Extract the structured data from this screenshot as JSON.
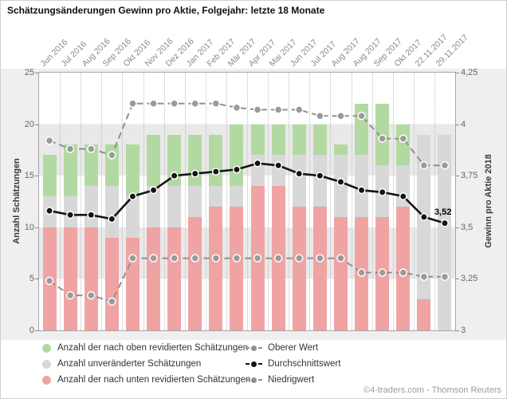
{
  "title": "Schätzungsänderungen Gewinn pro Aktie, Folgejahr: letzte 18 Monate",
  "chart_data": {
    "type": "bar",
    "subtype": "stacked-bars-with-lines",
    "categories": [
      "Jun 2016",
      "Jul 2016",
      "Aug 2016",
      "Sep 2016",
      "Okt 2016",
      "Nov 2016",
      "Dez 2016",
      "Jan 2017",
      "Feb 2017",
      "Mär 2017",
      "Apr 2017",
      "Mai 2017",
      "Jun 2017",
      "Jul 2017",
      "Aug 2017",
      "Aug 2017",
      "Sep 2017",
      "Okt 2017",
      "22.11.2017",
      "29.11.2017"
    ],
    "bar_series": [
      {
        "name": "Anzahl der nach unten revidierten Schätzungen",
        "role": "revised-down",
        "color": "#f0a3a3",
        "values": [
          10,
          10,
          10,
          9,
          9,
          10,
          10,
          11,
          12,
          12,
          14,
          14,
          12,
          12,
          11,
          11,
          11,
          12,
          3,
          0
        ]
      },
      {
        "name": "Anzahl unveränderter Schätzungen",
        "role": "unchanged",
        "color": "#d8d8d8",
        "values": [
          3,
          3,
          4,
          5,
          4,
          4,
          4,
          3,
          2,
          2,
          3,
          3,
          5,
          5,
          6,
          6,
          5,
          4,
          16,
          19
        ]
      },
      {
        "name": "Anzahl der nach oben revidierten Schätzungen",
        "role": "revised-up",
        "color": "#b3d9a3",
        "values": [
          4,
          5,
          4,
          4,
          5,
          5,
          5,
          5,
          5,
          6,
          3,
          3,
          3,
          3,
          1,
          5,
          6,
          4,
          0,
          0
        ]
      }
    ],
    "line_series": [
      {
        "name": "Oberer Wert",
        "color": "#909090",
        "style": "dashed",
        "values": [
          3.92,
          3.88,
          3.88,
          3.85,
          4.1,
          4.1,
          4.1,
          4.1,
          4.1,
          4.08,
          4.07,
          4.07,
          4.07,
          4.04,
          4.04,
          4.04,
          3.93,
          3.93,
          3.8,
          3.8
        ]
      },
      {
        "name": "Niedrigwert",
        "color": "#909090",
        "style": "dashed",
        "values": [
          3.24,
          3.17,
          3.17,
          3.14,
          3.35,
          3.35,
          3.35,
          3.35,
          3.35,
          3.35,
          3.35,
          3.35,
          3.35,
          3.35,
          3.35,
          3.28,
          3.28,
          3.28,
          3.26,
          3.26
        ]
      },
      {
        "name": "Durchschnittswert",
        "color": "#141414",
        "style": "solid",
        "values": [
          3.58,
          3.56,
          3.56,
          3.54,
          3.65,
          3.68,
          3.75,
          3.76,
          3.77,
          3.78,
          3.81,
          3.8,
          3.76,
          3.75,
          3.72,
          3.68,
          3.67,
          3.65,
          3.55,
          3.52
        ]
      }
    ],
    "left_axis": {
      "title": "Anzahl Schätzungen",
      "ticks": [
        25,
        20,
        15,
        10,
        5,
        0
      ],
      "range": [
        0,
        25
      ]
    },
    "right_axis": {
      "title": "Gewinn pro Aktie 2018",
      "tick_labels": [
        "4,25",
        "4",
        "3,75",
        "3,5",
        "3,25",
        "3"
      ],
      "tick_values": [
        4.25,
        4.0,
        3.75,
        3.5,
        3.25,
        3.0
      ],
      "range": [
        3,
        4.25
      ]
    },
    "annotation": {
      "text": "3,52",
      "series": "Durchschnittswert",
      "category": "29.11.2017",
      "index": 19
    },
    "grid": "vertical-dotted, alternating horizontal bands",
    "legend_position": "bottom"
  },
  "legend": {
    "bar_items": [
      {
        "label": "Anzahl der nach oben revidierten Schätzungen",
        "color": "#b3d9a3"
      },
      {
        "label": "Anzahl unveränderter Schätzungen",
        "color": "#d8d8d8"
      },
      {
        "label": "Anzahl der nach unten revidierten Schätzungen",
        "color": "#f0a3a3"
      }
    ],
    "line_items": [
      {
        "label": "Oberer Wert",
        "color": "#909090"
      },
      {
        "label": "Durchschnittswert",
        "color": "#141414"
      },
      {
        "label": "Niedrigwert",
        "color": "#909090"
      }
    ]
  },
  "footer": "©4-traders.com - Thomson Reuters"
}
